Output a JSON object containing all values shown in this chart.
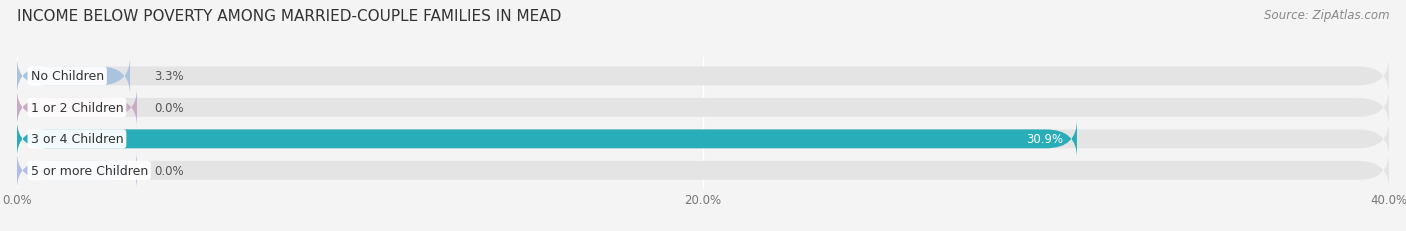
{
  "title": "INCOME BELOW POVERTY AMONG MARRIED-COUPLE FAMILIES IN MEAD",
  "source": "Source: ZipAtlas.com",
  "categories": [
    "No Children",
    "1 or 2 Children",
    "3 or 4 Children",
    "5 or more Children"
  ],
  "values": [
    3.3,
    0.0,
    30.9,
    0.0
  ],
  "bar_colors": [
    "#aac4e0",
    "#c8aac5",
    "#29adb8",
    "#b2bce8"
  ],
  "label_colors": [
    "#555555",
    "#555555",
    "#ffffff",
    "#555555"
  ],
  "xlim": [
    0,
    40
  ],
  "xticks": [
    0,
    20.0,
    40.0
  ],
  "xticklabels": [
    "0.0%",
    "20.0%",
    "40.0%"
  ],
  "background_color": "#f4f4f4",
  "bar_background_color": "#e4e4e4",
  "title_fontsize": 11,
  "source_fontsize": 8.5,
  "value_fontsize": 8.5,
  "category_fontsize": 9,
  "bar_height": 0.6,
  "figsize": [
    14.06,
    2.32
  ],
  "dpi": 100
}
